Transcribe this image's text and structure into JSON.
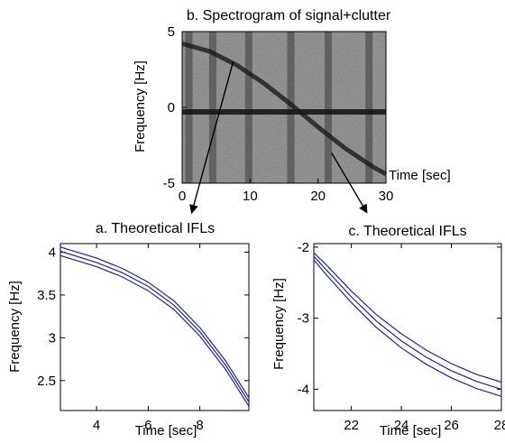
{
  "chart_data": [
    {
      "id": "spectrogram",
      "type": "heatmap",
      "title": "b. Spectrogram of signal+clutter",
      "xlabel": "Time [sec]",
      "ylabel": "Frequency [Hz]",
      "xlim": [
        0,
        30
      ],
      "ylim": [
        -5,
        5
      ],
      "xticks": [
        "0",
        "10",
        "20",
        "30"
      ],
      "yticks": [
        "5",
        "0",
        "-5"
      ],
      "colormap": "grayscale",
      "clutter": {
        "frequency": -0.3,
        "description": "horizontal dark band"
      },
      "dark_time_stripes": [
        1,
        4.5,
        9.8,
        16,
        21.5,
        27.5
      ],
      "ifl_track": {
        "x": [
          0,
          4,
          8,
          12,
          16,
          20,
          24,
          28,
          30
        ],
        "y": [
          4.2,
          3.7,
          2.8,
          1.6,
          0.2,
          -1.3,
          -2.7,
          -3.9,
          -4.4
        ]
      },
      "annotations": [
        {
          "from": [
            7.5,
            3.0
          ],
          "to": [
            1.5,
            -6.8
          ],
          "target": "a. Theoretical IFLs"
        },
        {
          "from": [
            22,
            -3.0
          ],
          "to": [
            27,
            -6.8
          ],
          "target": "c. Theoretical IFLs"
        }
      ]
    },
    {
      "id": "ifl-a",
      "type": "line",
      "title": "a. Theoretical IFLs",
      "xlabel": "Time [sec]",
      "ylabel": "Frequency [Hz]",
      "xlim": [
        2.6,
        9.9
      ],
      "ylim": [
        2.15,
        4.1
      ],
      "xticks": [
        4,
        6,
        8
      ],
      "yticks": [
        4,
        3.5,
        3,
        2.5
      ],
      "ytick_labels": [
        "4",
        "3.5",
        "3",
        "2.5"
      ],
      "line_color": "#1f1fb0",
      "series": [
        {
          "x": [
            2.6,
            4,
            5,
            6,
            7,
            8,
            9,
            9.9
          ],
          "y": [
            4.06,
            3.93,
            3.81,
            3.65,
            3.43,
            3.12,
            2.73,
            2.3
          ]
        },
        {
          "x": [
            2.6,
            4,
            5,
            6,
            7,
            8,
            9,
            9.9
          ],
          "y": [
            4.01,
            3.88,
            3.76,
            3.6,
            3.38,
            3.07,
            2.68,
            2.25
          ]
        },
        {
          "x": [
            2.6,
            4,
            5,
            6,
            7,
            8,
            9,
            9.9
          ],
          "y": [
            3.96,
            3.83,
            3.71,
            3.55,
            3.33,
            3.02,
            2.63,
            2.2
          ]
        }
      ]
    },
    {
      "id": "ifl-c",
      "type": "line",
      "title": "c. Theoretical IFLs",
      "xlabel": "Time [sec]",
      "ylabel": "Frequency [Hz]",
      "xlim": [
        20.5,
        28
      ],
      "ylim": [
        -4.3,
        -1.95
      ],
      "xticks": [
        22,
        24,
        26,
        28
      ],
      "yticks": [
        -2,
        -3,
        -4
      ],
      "ytick_labels": [
        "-2",
        "-3",
        "-4"
      ],
      "line_color": "#1f1fb0",
      "series": [
        {
          "x": [
            20.5,
            21,
            22,
            23,
            24,
            25,
            26,
            27,
            28
          ],
          "y": [
            -2.08,
            -2.25,
            -2.62,
            -2.95,
            -3.22,
            -3.45,
            -3.64,
            -3.79,
            -3.9
          ]
        },
        {
          "x": [
            20.5,
            21,
            22,
            23,
            24,
            25,
            26,
            27,
            28
          ],
          "y": [
            -2.13,
            -2.32,
            -2.7,
            -3.04,
            -3.32,
            -3.55,
            -3.74,
            -3.89,
            -4.0
          ]
        },
        {
          "x": [
            20.5,
            21,
            22,
            23,
            24,
            25,
            26,
            27,
            28
          ],
          "y": [
            -2.18,
            -2.39,
            -2.78,
            -3.13,
            -3.42,
            -3.65,
            -3.84,
            -3.99,
            -4.1
          ]
        }
      ]
    }
  ]
}
